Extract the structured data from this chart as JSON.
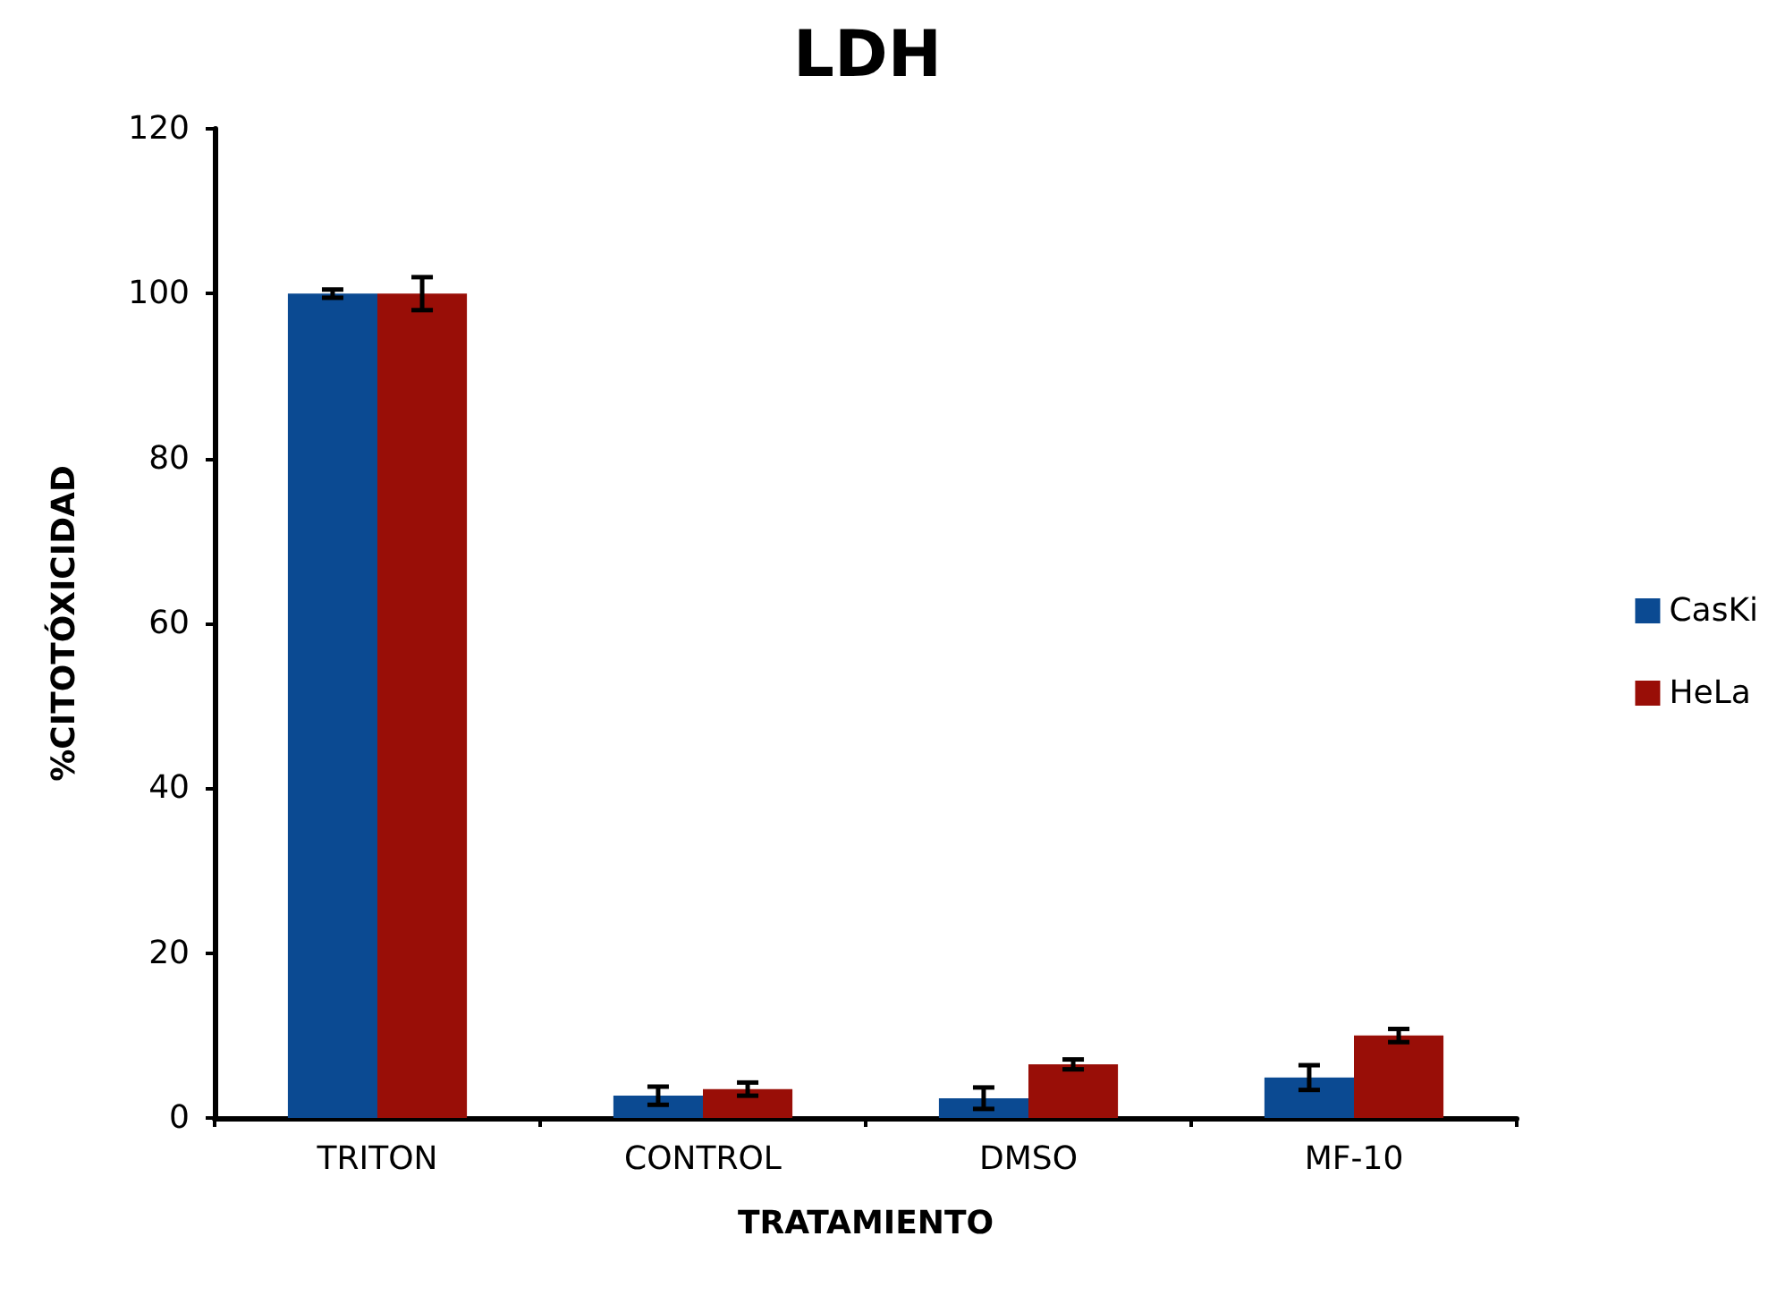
{
  "chart_data": {
    "type": "bar",
    "title": "LDH",
    "xlabel": "TRATAMIENTO",
    "ylabel": "%CITOTÓXICIDAD",
    "categories": [
      "TRITON",
      "CONTROL",
      "DMSO",
      "MF-10"
    ],
    "series": [
      {
        "name": "CasKi",
        "color": "#0b4a92",
        "values": [
          100,
          2.7,
          2.4,
          4.9
        ],
        "errors": [
          0.5,
          1.1,
          1.3,
          1.5
        ]
      },
      {
        "name": "HeLa",
        "color": "#990e07",
        "values": [
          100,
          3.5,
          6.5,
          10
        ],
        "errors": [
          2,
          0.8,
          0.6,
          0.8
        ]
      }
    ],
    "ylim": [
      0,
      120
    ],
    "yticks": [
      0,
      20,
      40,
      60,
      80,
      100,
      120
    ],
    "grid": false,
    "legend": "right"
  }
}
